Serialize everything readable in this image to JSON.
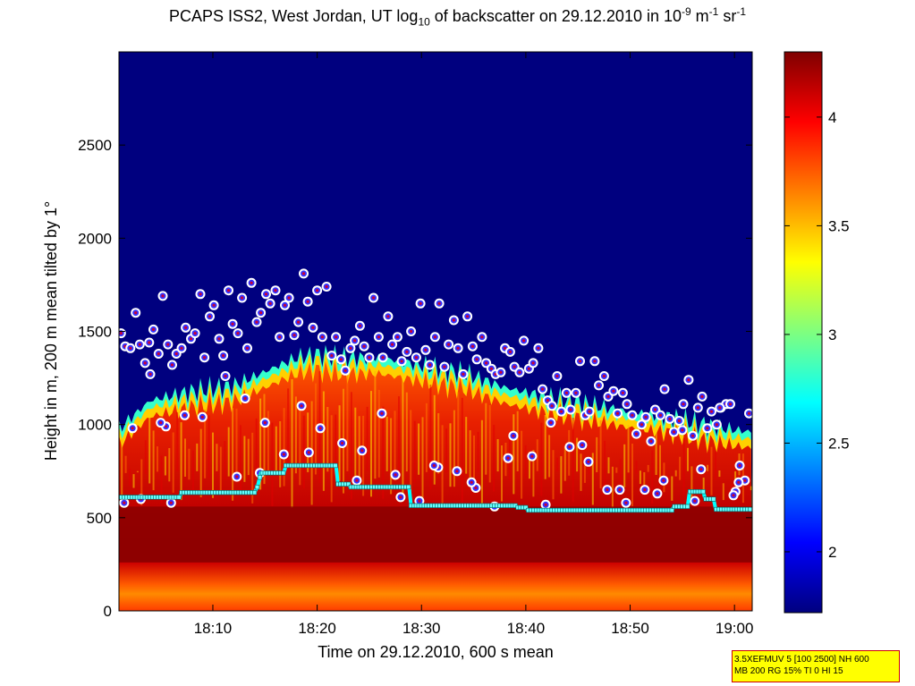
{
  "title": {
    "part1": "PCAPS ISS2, West Jordan, UT log",
    "sub": "10",
    "part2": " of backscatter on 29.12.2010 in 10",
    "sup1": "-9",
    "part3": " m",
    "sup2": "-1",
    "part4": " sr",
    "sup3": "-1"
  },
  "chart_data": {
    "type": "heatmap",
    "xlabel": "Time on 29.12.2010, 600 s mean",
    "ylabel": "Height in m, 200 m mean tilted by 1°",
    "x_ticks": [
      "18:10",
      "18:20",
      "18:30",
      "18:40",
      "18:50",
      "19:00"
    ],
    "x_tick_values_min": [
      10,
      20,
      30,
      40,
      50,
      60
    ],
    "xlim_min": [
      1,
      61.7
    ],
    "y_ticks": [
      0,
      500,
      1000,
      1500,
      2000,
      2500
    ],
    "ylim": [
      0,
      3000
    ],
    "colorbar": {
      "ticks": [
        2,
        2.5,
        3,
        3.5,
        4
      ],
      "range": [
        1.72,
        4.3
      ]
    },
    "colormap": "jet",
    "colors": {
      "background_clear": "#00007f",
      "aerosol": "#cc0000",
      "surface": "#ff6600"
    },
    "top_of_aerosol_m": {
      "t": [
        1,
        4,
        8,
        12,
        14,
        16,
        18,
        20,
        22,
        26,
        30,
        34,
        38,
        42,
        46,
        50,
        54,
        58,
        61.7
      ],
      "h": [
        950,
        1100,
        1150,
        1180,
        1230,
        1280,
        1330,
        1350,
        1330,
        1330,
        1290,
        1250,
        1170,
        1120,
        1080,
        1040,
        1010,
        960,
        930
      ]
    },
    "mixing_layer_series": {
      "name": "",
      "t": [
        1,
        6.8,
        7.0,
        14.0,
        14.3,
        14.6,
        16.8,
        17.0,
        21.8,
        22.0,
        23.0,
        23.2,
        28.8,
        29.0,
        39.0,
        39.2,
        40.0,
        40.2,
        54.0,
        54.2,
        55.5,
        55.7,
        57.0,
        57.2,
        58.0,
        58.2,
        61.7
      ],
      "h": [
        610,
        610,
        635,
        635,
        670,
        740,
        740,
        780,
        780,
        680,
        680,
        665,
        665,
        565,
        565,
        555,
        555,
        540,
        540,
        560,
        560,
        640,
        640,
        600,
        600,
        545,
        545
      ]
    },
    "cloud_points_m": {
      "t": [
        1.2,
        1.6,
        2.1,
        2.6,
        3.0,
        3.5,
        3.9,
        4.3,
        4.8,
        5.2,
        5.7,
        6.1,
        6.5,
        7.0,
        7.4,
        7.9,
        8.3,
        8.8,
        9.2,
        9.7,
        10.1,
        10.6,
        11.0,
        11.5,
        11.9,
        12.4,
        12.8,
        13.3,
        13.7,
        14.2,
        14.6,
        15.1,
        15.5,
        16.0,
        16.4,
        16.9,
        17.3,
        17.8,
        18.2,
        18.7,
        19.1,
        19.6,
        20.0,
        20.5,
        20.9,
        21.4,
        21.8,
        22.3,
        22.7,
        23.2,
        23.6,
        24.1,
        24.5,
        25.0,
        25.4,
        25.9,
        26.3,
        26.8,
        27.2,
        27.7,
        28.1,
        28.6,
        29.0,
        29.5,
        29.9,
        30.4,
        30.8,
        31.3,
        31.7,
        32.2,
        32.6,
        33.1,
        33.5,
        34.0,
        34.4,
        34.9,
        35.3,
        35.8,
        36.2,
        36.7,
        37.1,
        37.6,
        38.0,
        38.5,
        38.9,
        39.4,
        39.8,
        40.3,
        40.7,
        41.2,
        41.6,
        42.1,
        42.5,
        43.0,
        43.4,
        43.9,
        44.3,
        44.8,
        45.2,
        45.7,
        46.1,
        46.6,
        47.0,
        47.5,
        47.9,
        48.4,
        48.8,
        49.3,
        49.7,
        50.2,
        50.6,
        51.1,
        51.5,
        52.0,
        52.4,
        52.9,
        53.3,
        53.8,
        54.2,
        54.7,
        55.1,
        55.6,
        56.0,
        56.5,
        56.9,
        57.4,
        57.8,
        58.3,
        58.7,
        59.2,
        59.6,
        60.1,
        60.5,
        61.0,
        61.4,
        2.3,
        4.0,
        5.5,
        7.3,
        9.0,
        11.2,
        13.1,
        15.0,
        16.8,
        18.5,
        20.3,
        22.4,
        24.3,
        26.2,
        28.0,
        29.8,
        31.6,
        33.4,
        35.2,
        37.0,
        38.8,
        40.6,
        42.4,
        44.2,
        46.0,
        47.8,
        49.6,
        51.4,
        53.2,
        55.0,
        56.8,
        58.6,
        60.4,
        3.1,
        5.0,
        12.3,
        14.5,
        19.2,
        23.8,
        27.5,
        31.2,
        34.8,
        38.3,
        41.9,
        45.4,
        49.0,
        52.6,
        56.2,
        59.9,
        1.5,
        6.0,
        9.9,
        17.5,
        21.2,
        25.6,
        30.1,
        36.0,
        43.1,
        57.7
      ],
      "h": [
        1490,
        1420,
        1410,
        1600,
        1430,
        1330,
        1440,
        1510,
        1380,
        1690,
        1430,
        1320,
        1380,
        1410,
        1520,
        1460,
        1490,
        1700,
        1360,
        1580,
        1640,
        1460,
        1370,
        1720,
        1540,
        1490,
        1680,
        1410,
        1760,
        1550,
        1600,
        1700,
        1650,
        1720,
        1470,
        1640,
        1680,
        1480,
        1550,
        1810,
        1660,
        1520,
        1720,
        1470,
        1740,
        1370,
        1470,
        1350,
        1290,
        1410,
        1450,
        1530,
        1420,
        1360,
        1680,
        1470,
        1360,
        1580,
        1430,
        1470,
        1340,
        1390,
        1500,
        1360,
        1650,
        1400,
        1320,
        1470,
        1650,
        1310,
        1430,
        1560,
        1410,
        1270,
        1580,
        1420,
        1350,
        1470,
        1330,
        1300,
        1270,
        1280,
        1410,
        1390,
        1310,
        1280,
        1450,
        1300,
        1330,
        1410,
        1190,
        1130,
        1100,
        1260,
        1070,
        1170,
        1080,
        1170,
        1340,
        1050,
        1070,
        1340,
        1210,
        1260,
        1150,
        1180,
        1060,
        1170,
        1110,
        1050,
        950,
        1000,
        1040,
        910,
        1080,
        1050,
        1190,
        1030,
        960,
        1020,
        1110,
        1240,
        940,
        1090,
        1150,
        980,
        1070,
        1000,
        1090,
        1110,
        1110,
        640,
        780,
        700,
        1060,
        980,
        1270,
        990,
        1050,
        1040,
        1260,
        1140,
        1010,
        840,
        1100,
        980,
        900,
        860,
        1060,
        610,
        590,
        770,
        750,
        660,
        560,
        940,
        830,
        1010,
        880,
        800,
        650,
        580,
        650,
        700,
        970,
        760,
        1090,
        690,
        600,
        1010,
        720,
        740,
        850,
        700,
        730,
        780,
        690,
        820,
        570,
        890,
        650,
        630,
        590,
        620,
        580,
        580
      ],
      "marker": "circle"
    }
  },
  "infobox": {
    "line1": "3.5XEFMUV 5 [100 2500] NH 600",
    "line2": "MB 200 RG 15% TI 0 HI 15"
  }
}
